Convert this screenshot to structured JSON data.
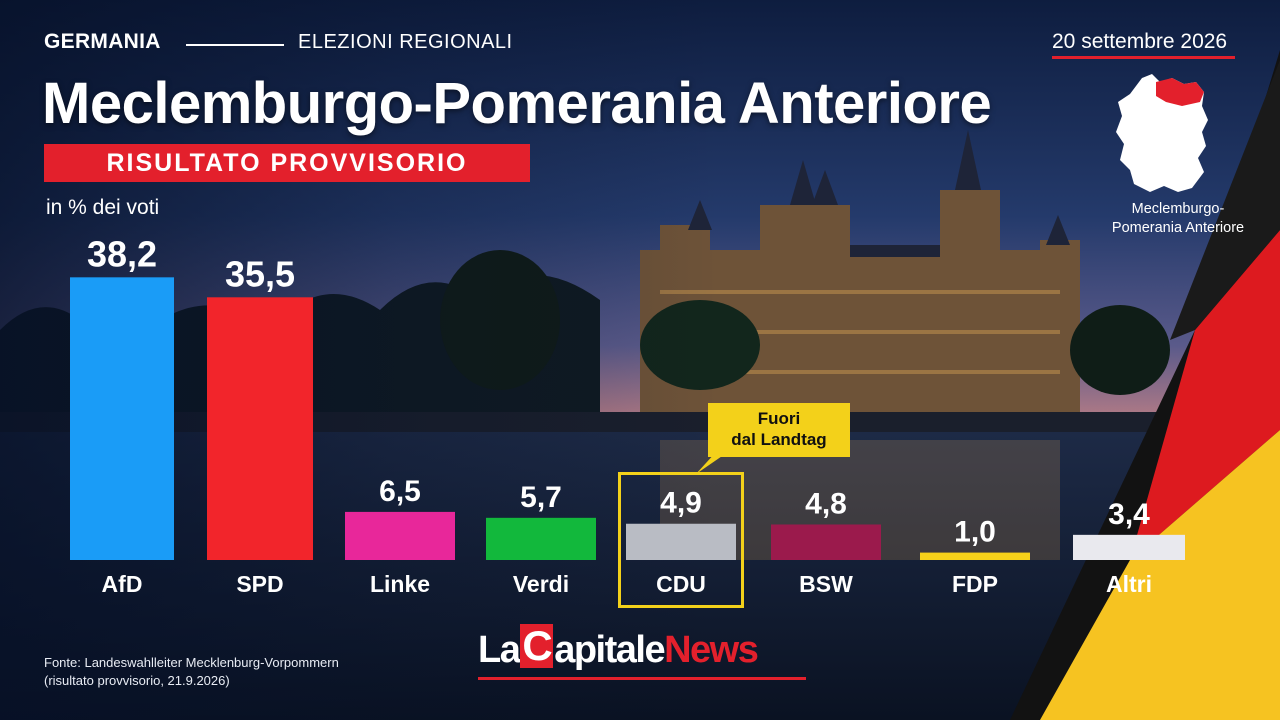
{
  "header": {
    "country": "GERMANIA",
    "section": "ELEZIONI REGIONALI",
    "date": "20 settembre 2026",
    "title": "Meclemburgo-Pomerania Anteriore",
    "badge": "RISULTATO PROVVISORIO",
    "subtitle": "in % dei voti"
  },
  "map": {
    "label_line1": "Meclemburgo-",
    "label_line2": "Pomerania Anteriore"
  },
  "callout": {
    "line1": "Fuori",
    "line2": "dal Landtag"
  },
  "source": {
    "line1": "Fonte: Landeswahlleiter Mecklenburg-Vorpommern",
    "line2": "(risultato provvisorio, 21.9.2026)"
  },
  "logo": {
    "la": "La",
    "c": "C",
    "apitale": "apitale",
    "news": "News"
  },
  "chart_data": {
    "type": "bar",
    "categories": [
      "AfD",
      "SPD",
      "Linke",
      "Verdi",
      "CDU",
      "BSW",
      "FDP",
      "Altri"
    ],
    "values": [
      38.2,
      35.5,
      6.5,
      5.7,
      4.9,
      4.8,
      1.0,
      3.4
    ],
    "value_labels": [
      "38,2",
      "35,5",
      "6,5",
      "5,7",
      "4,9",
      "4,8",
      "1,0",
      "3,4"
    ],
    "colors": [
      "#1a9cf7",
      "#f2252b",
      "#e8279a",
      "#12b83c",
      "#b9bcc4",
      "#9b1a4c",
      "#f7d21a",
      "#e9e9ee"
    ],
    "ylabel": "in % dei voti",
    "highlight": "CDU"
  }
}
